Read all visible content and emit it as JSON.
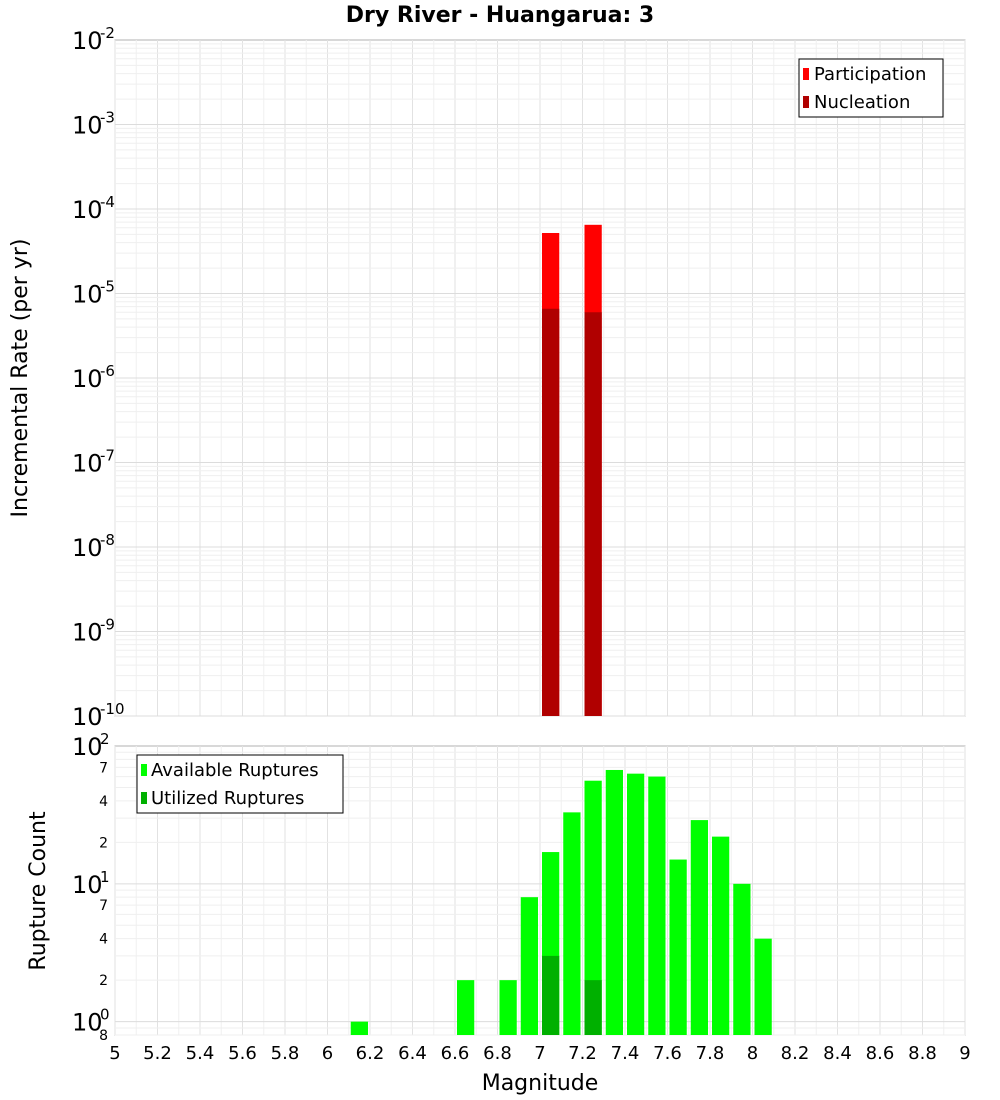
{
  "chart_data": [
    {
      "type": "bar",
      "title": "Dry River - Huangarua: 3",
      "xlabel": "",
      "ylabel": "Incremental Rate (per yr)",
      "yscale": "log",
      "xlim": [
        5,
        9
      ],
      "ylim": [
        1e-10,
        0.01
      ],
      "y_tick_exponents": [
        "-10",
        "-9",
        "-8",
        "-7",
        "-6",
        "-5",
        "-4",
        "-3",
        "-2"
      ],
      "y_tick_base": "10",
      "legend": {
        "placement": "top-right",
        "entries": [
          "Participation",
          "Nucleation"
        ]
      },
      "series": [
        {
          "name": "Participation",
          "color": "#ff0000",
          "x": [
            7.05,
            7.25
          ],
          "values": [
            5.2e-05,
            6.5e-05
          ]
        },
        {
          "name": "Nucleation",
          "color": "#b00000",
          "x": [
            7.05,
            7.25
          ],
          "values": [
            6.6e-06,
            6e-06
          ]
        }
      ]
    },
    {
      "type": "bar",
      "title": "",
      "xlabel": "Magnitude",
      "ylabel": "Rupture Count",
      "yscale": "log",
      "xlim": [
        5,
        9
      ],
      "ylim": [
        0.8,
        100
      ],
      "x_ticks": [
        "5",
        "5.2",
        "5.4",
        "5.6",
        "5.8",
        "6",
        "6.2",
        "6.4",
        "6.6",
        "6.8",
        "7",
        "7.2",
        "7.4",
        "7.6",
        "7.8",
        "8",
        "8.2",
        "8.4",
        "8.6",
        "8.8",
        "9"
      ],
      "y_major_ticks": [
        {
          "base": "10",
          "exp": "0",
          "value": 1
        },
        {
          "base": "10",
          "exp": "1",
          "value": 10
        },
        {
          "base": "10",
          "exp": "2",
          "value": 100
        }
      ],
      "y_minor_ticks": [
        {
          "label": "8",
          "value": 0.8
        },
        {
          "label": "2",
          "value": 2
        },
        {
          "label": "4",
          "value": 4
        },
        {
          "label": "7",
          "value": 7
        },
        {
          "label": "2",
          "value": 20
        },
        {
          "label": "4",
          "value": 40
        },
        {
          "label": "7",
          "value": 70
        }
      ],
      "legend": {
        "placement": "top-left",
        "entries": [
          "Available Ruptures",
          "Utilized Ruptures"
        ]
      },
      "series": [
        {
          "name": "Available Ruptures",
          "color": "#00ff00",
          "x": [
            6.15,
            6.65,
            6.85,
            6.95,
            7.05,
            7.15,
            7.25,
            7.35,
            7.45,
            7.55,
            7.65,
            7.75,
            7.85,
            7.95,
            8.05
          ],
          "values": [
            1,
            2,
            2,
            8,
            17,
            33,
            56,
            67,
            63,
            60,
            15,
            29,
            22,
            10,
            4
          ]
        },
        {
          "name": "Utilized Ruptures",
          "color": "#00b000",
          "x": [
            7.05,
            7.25
          ],
          "values": [
            3,
            2
          ]
        }
      ]
    }
  ]
}
